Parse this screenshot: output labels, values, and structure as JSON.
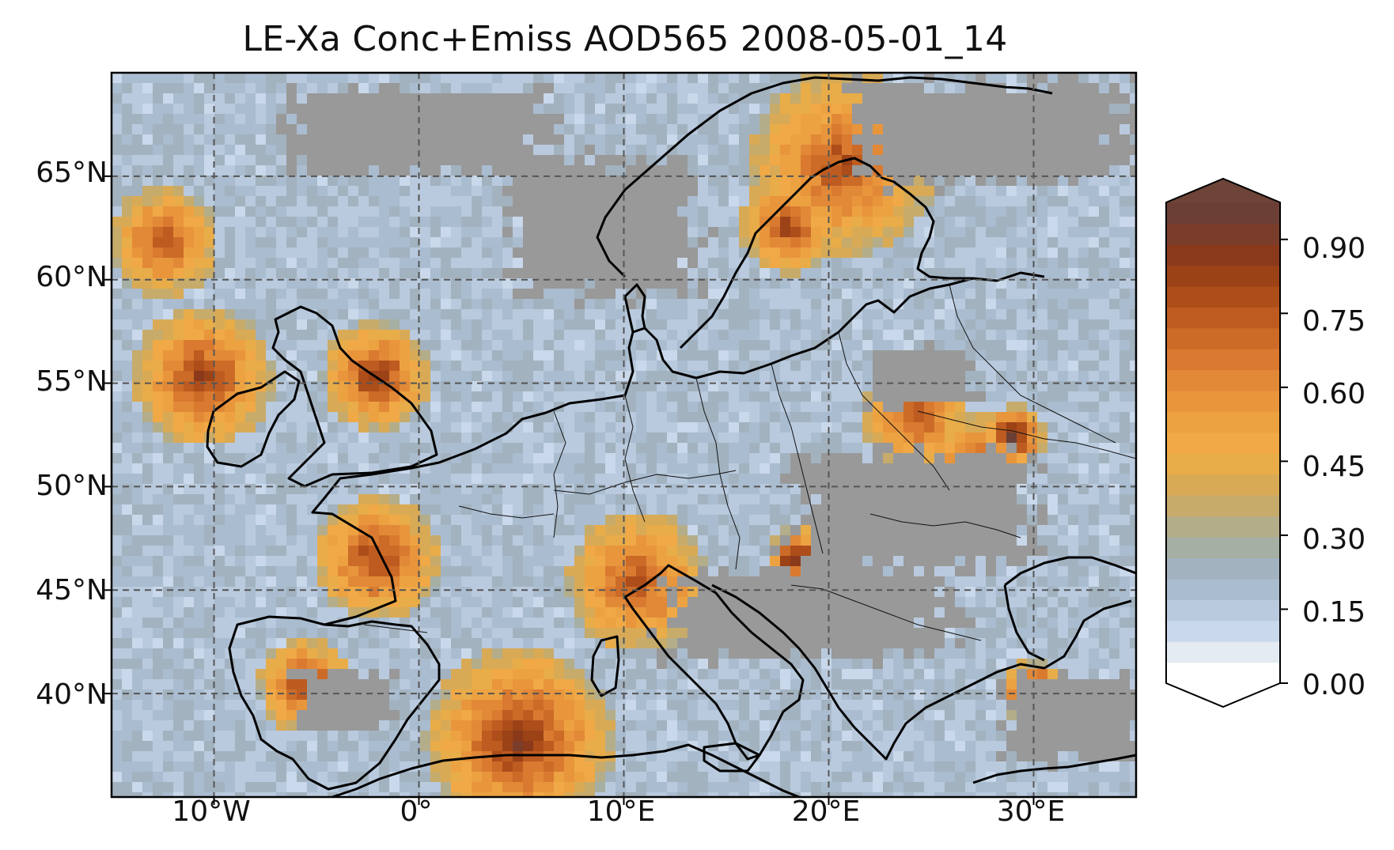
{
  "title": "LE-Xa Conc+Emiss AOD565 2008-05-01_14",
  "map": {
    "projection": "PlateCarree",
    "lon_range": [
      -15,
      35
    ],
    "lat_range": [
      35,
      70
    ],
    "lat_ticks": [
      {
        "value": 65,
        "label": "65°N"
      },
      {
        "value": 60,
        "label": "60°N"
      },
      {
        "value": 55,
        "label": "55°N"
      },
      {
        "value": 50,
        "label": "50°N"
      },
      {
        "value": 45,
        "label": "45°N"
      },
      {
        "value": 40,
        "label": "40°N"
      }
    ],
    "lon_ticks": [
      {
        "value": -10,
        "label": "10°W"
      },
      {
        "value": 0,
        "label": "0°"
      },
      {
        "value": 10,
        "label": "10°E"
      },
      {
        "value": 20,
        "label": "20°E"
      },
      {
        "value": 30,
        "label": "30°E"
      }
    ],
    "gridlines": "dashed",
    "missing_color": "#999999",
    "coastline_color": "#000000"
  },
  "colorbar": {
    "vmin": 0.0,
    "vmax": 0.975,
    "extend": "both",
    "tick_values": [
      0.0,
      0.15,
      0.3,
      0.45,
      0.6,
      0.75,
      0.9
    ],
    "tick_labels": [
      "0.00",
      "0.15",
      "0.30",
      "0.45",
      "0.60",
      "0.75",
      "0.90"
    ],
    "colors": [
      "#ffffff",
      "#e4ebf3",
      "#c9d8ea",
      "#b9cade",
      "#aabccf",
      "#a2b2bf",
      "#a6afa3",
      "#b4ad8a",
      "#c7ab6a",
      "#d9aa55",
      "#e8ac49",
      "#f0a946",
      "#eda242",
      "#e8953c",
      "#e28937",
      "#d97a30",
      "#cc6b27",
      "#be5b20",
      "#ad4d1a",
      "#9b4217",
      "#8a3a1a",
      "#7a3d2c",
      "#6b3f35"
    ],
    "under_color": "#ffffff",
    "over_color": "#6e4438"
  }
}
